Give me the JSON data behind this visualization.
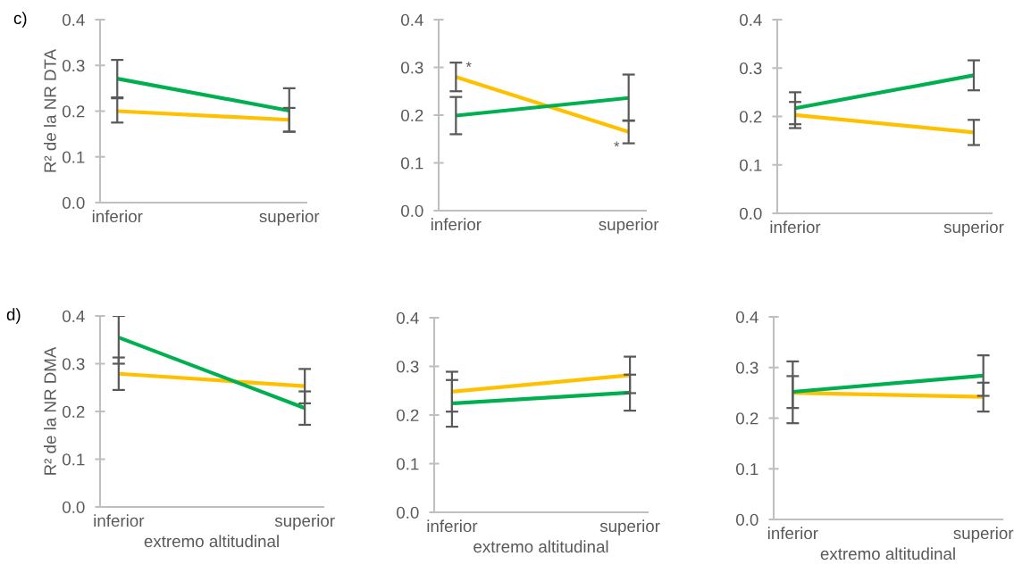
{
  "chart_data": [
    {
      "type": "line",
      "ylabel": "R² de la NR DTA",
      "annotations": [
        "c)"
      ],
      "categories": [
        "inferior",
        "superior"
      ],
      "ylim": [
        0,
        0.4
      ],
      "yticks": [
        {
          "value": 0,
          "label": "0.0"
        },
        {
          "value": 0.1,
          "label": "0.1"
        },
        {
          "value": 0.2,
          "label": "0.2"
        },
        {
          "value": 0.3,
          "label": "0.3"
        },
        {
          "value": 0.4,
          "label": "0.4"
        }
      ],
      "grid": false,
      "marker": "none",
      "line_style": "solid",
      "series": [
        {
          "color": "#ffc000",
          "values": [
            0.2,
            0.181
          ],
          "errors": [
            [
              0.175,
              0.228
            ],
            [
              0.155,
              0.207
            ]
          ]
        },
        {
          "color": "#00b050",
          "values": [
            0.271,
            0.201
          ],
          "errors": [
            [
              0.23,
              0.312
            ],
            [
              0.155,
              0.25
            ]
          ]
        }
      ]
    },
    {
      "type": "line",
      "annotations": [
        {
          "text": "*",
          "x": "inferior",
          "y": 0.28
        },
        {
          "text": "*",
          "x": "superior",
          "y": 0.165
        }
      ],
      "categories": [
        "inferior",
        "superior"
      ],
      "ylim": [
        0,
        0.4
      ],
      "yticks": [
        {
          "value": 0,
          "label": "0.0"
        },
        {
          "value": 0.1,
          "label": "0.1"
        },
        {
          "value": 0.2,
          "label": "0.2"
        },
        {
          "value": 0.3,
          "label": "0.3"
        },
        {
          "value": 0.4,
          "label": "0.4"
        }
      ],
      "grid": false,
      "marker": "none",
      "line_style": "solid",
      "series": [
        {
          "color": "#ffc000",
          "values": [
            0.28,
            0.165
          ],
          "errors": [
            [
              0.25,
              0.31
            ],
            [
              0.141,
              0.189
            ]
          ]
        },
        {
          "color": "#00b050",
          "values": [
            0.199,
            0.236
          ],
          "errors": [
            [
              0.16,
              0.238
            ],
            [
              0.188,
              0.285
            ]
          ]
        }
      ]
    },
    {
      "type": "line",
      "categories": [
        "inferior",
        "superior"
      ],
      "ylim": [
        0,
        0.4
      ],
      "yticks": [
        {
          "value": 0,
          "label": "0.0"
        },
        {
          "value": 0.1,
          "label": "0.1"
        },
        {
          "value": 0.2,
          "label": "0.2"
        },
        {
          "value": 0.3,
          "label": "0.3"
        },
        {
          "value": 0.4,
          "label": "0.4"
        }
      ],
      "grid": false,
      "marker": "none",
      "line_style": "solid",
      "series": [
        {
          "color": "#ffc000",
          "values": [
            0.203,
            0.167
          ],
          "errors": [
            [
              0.176,
              0.23
            ],
            [
              0.141,
              0.193
            ]
          ]
        },
        {
          "color": "#00b050",
          "values": [
            0.217,
            0.285
          ],
          "errors": [
            [
              0.184,
              0.25
            ],
            [
              0.254,
              0.316
            ]
          ]
        }
      ]
    },
    {
      "type": "line",
      "ylabel": "R² de la NR DMA",
      "xlabel": "extremo altitudinal",
      "annotations": [
        "d)"
      ],
      "categories": [
        "inferior",
        "superior"
      ],
      "ylim": [
        0,
        0.4
      ],
      "yticks": [
        {
          "value": 0,
          "label": "0.0"
        },
        {
          "value": 0.1,
          "label": "0.1"
        },
        {
          "value": 0.2,
          "label": "0.2"
        },
        {
          "value": 0.3,
          "label": "0.3"
        },
        {
          "value": 0.4,
          "label": "0.4"
        }
      ],
      "grid": false,
      "marker": "none",
      "line_style": "solid",
      "series": [
        {
          "color": "#ffc000",
          "values": [
            0.279,
            0.253
          ],
          "errors": [
            [
              0.245,
              0.313
            ],
            [
              0.217,
              0.289
            ]
          ]
        },
        {
          "color": "#00b050",
          "values": [
            0.355,
            0.207
          ],
          "errors": [
            [
              0.3,
              0.4
            ],
            [
              0.172,
              0.242
            ]
          ]
        }
      ]
    },
    {
      "type": "line",
      "xlabel": "extremo altitudinal",
      "categories": [
        "inferior",
        "superior"
      ],
      "ylim": [
        0,
        0.4
      ],
      "yticks": [
        {
          "value": 0,
          "label": "0.0"
        },
        {
          "value": 0.1,
          "label": "0.1"
        },
        {
          "value": 0.2,
          "label": "0.2"
        },
        {
          "value": 0.3,
          "label": "0.3"
        },
        {
          "value": 0.4,
          "label": "0.4"
        }
      ],
      "grid": false,
      "marker": "none",
      "line_style": "solid",
      "series": [
        {
          "color": "#ffc000",
          "values": [
            0.248,
            0.282
          ],
          "errors": [
            [
              0.207,
              0.289
            ],
            [
              0.245,
              0.32
            ]
          ]
        },
        {
          "color": "#00b050",
          "values": [
            0.224,
            0.246
          ],
          "errors": [
            [
              0.176,
              0.272
            ],
            [
              0.209,
              0.283
            ]
          ]
        }
      ]
    },
    {
      "type": "line",
      "xlabel": "extremo altitudinal",
      "categories": [
        "inferior",
        "superior"
      ],
      "ylim": [
        0,
        0.4
      ],
      "yticks": [
        {
          "value": 0,
          "label": "0.0"
        },
        {
          "value": 0.1,
          "label": "0.1"
        },
        {
          "value": 0.2,
          "label": "0.2"
        },
        {
          "value": 0.3,
          "label": "0.3"
        },
        {
          "value": 0.4,
          "label": "0.4"
        }
      ],
      "grid": false,
      "marker": "none",
      "line_style": "solid",
      "series": [
        {
          "color": "#ffc000",
          "values": [
            0.25,
            0.242
          ],
          "errors": [
            [
              0.22,
              0.283
            ],
            [
              0.213,
              0.27
            ]
          ]
        },
        {
          "color": "#00b050",
          "values": [
            0.252,
            0.284
          ],
          "errors": [
            [
              0.19,
              0.312
            ],
            [
              0.244,
              0.324
            ]
          ]
        }
      ]
    }
  ]
}
